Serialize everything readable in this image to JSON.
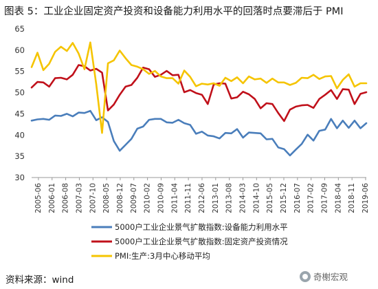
{
  "figure": {
    "title": "图表 5：工业企业固定资产投资和设备能力利用水平的回落时点要滞后于 PMI",
    "source": "资料来源：wind",
    "watermark": "奇榭宏观"
  },
  "chart_data": {
    "type": "line",
    "ylim": [
      30,
      65
    ],
    "yticks": [
      30,
      35,
      40,
      45,
      50,
      55,
      60,
      65
    ],
    "xlim": [
      0,
      57
    ],
    "xtick_labels": [
      "2005-06",
      "2006-01",
      "2006-08",
      "2007-03",
      "2007-10",
      "2008-05",
      "2008-12",
      "2009-07",
      "2010-02",
      "2010-09",
      "2011-04",
      "2011-11",
      "2012-06",
      "2013-01",
      "2013-08",
      "2014-03",
      "2014-10",
      "2015-05",
      "2015-12",
      "2016-07",
      "2017-02",
      "2017-09",
      "2018-04",
      "2018-11",
      "2019-06"
    ],
    "grid": false,
    "legend_position": "bottom",
    "series": [
      {
        "name": "5000户工业企业景气扩散指数:设备能力利用水平",
        "color": "#4a7ebb",
        "values": [
          43.4,
          43.7,
          43.8,
          43.6,
          44.6,
          44.5,
          45,
          44.4,
          45.3,
          45.2,
          45.7,
          43.5,
          44.2,
          43.1,
          38.6,
          36.3,
          37.7,
          39.1,
          41.5,
          42,
          43.6,
          43.8,
          43.8,
          43,
          42.9,
          43.6,
          42.8,
          42.4,
          40.3,
          40.8,
          39.9,
          39.7,
          39.2,
          40.5,
          40.4,
          41.4,
          39.4,
          40.6,
          40.5,
          40.4,
          39,
          39.1,
          37.1,
          36.7,
          35.2,
          36.6,
          37.9,
          40.1,
          38.7,
          41,
          41.3,
          43.8,
          41.6,
          43.4,
          41.7,
          43.4,
          41.6,
          42.8
        ]
      },
      {
        "name": "5000户工业企业景气扩散指数:固定资产投资情况",
        "color": "#c0101a",
        "values": [
          51.2,
          52.5,
          52.4,
          51.4,
          53.4,
          53.5,
          53.1,
          54.2,
          56.5,
          56.2,
          55.2,
          55.6,
          54.7,
          45.8,
          47.2,
          49.5,
          51.4,
          51.8,
          53.5,
          55.9,
          55.5,
          53.7,
          54.2,
          55.1,
          54.1,
          54.2,
          50.1,
          50.6,
          49.9,
          49.5,
          47.3,
          51.9,
          52.2,
          52.1,
          48.6,
          48.9,
          50.2,
          49.6,
          48.5,
          46.3,
          47.5,
          47.3,
          45.2,
          43.3,
          46,
          46.7,
          47,
          47.1,
          46.4,
          48.5,
          49.5,
          50.6,
          48.5,
          50.8,
          50.7,
          47.3,
          49.7,
          50.1
        ]
      },
      {
        "name": "PMI:生产:3月中心移动平均",
        "color": "#f5c400",
        "values": [
          56,
          59.4,
          55.3,
          56.8,
          59.6,
          60.8,
          59.8,
          61.7,
          59.2,
          55.5,
          61.8,
          52,
          40.5,
          56.9,
          57.6,
          59.9,
          58.1,
          56.5,
          56.1,
          55.5,
          54.4,
          55.1,
          53.8,
          53.4,
          53.4,
          52.1,
          55.2,
          53.7,
          51.5,
          52.1,
          51.9,
          52.2,
          51.6,
          53.5,
          52.7,
          53.6,
          52.2,
          53.8,
          53.1,
          53.3,
          52.3,
          53.3,
          52.4,
          52.4,
          51.8,
          52.3,
          53.5,
          53.4,
          54.2,
          53.2,
          53.8,
          53.9,
          51,
          53,
          54.3,
          51.4,
          52.2,
          52.2
        ]
      }
    ]
  }
}
